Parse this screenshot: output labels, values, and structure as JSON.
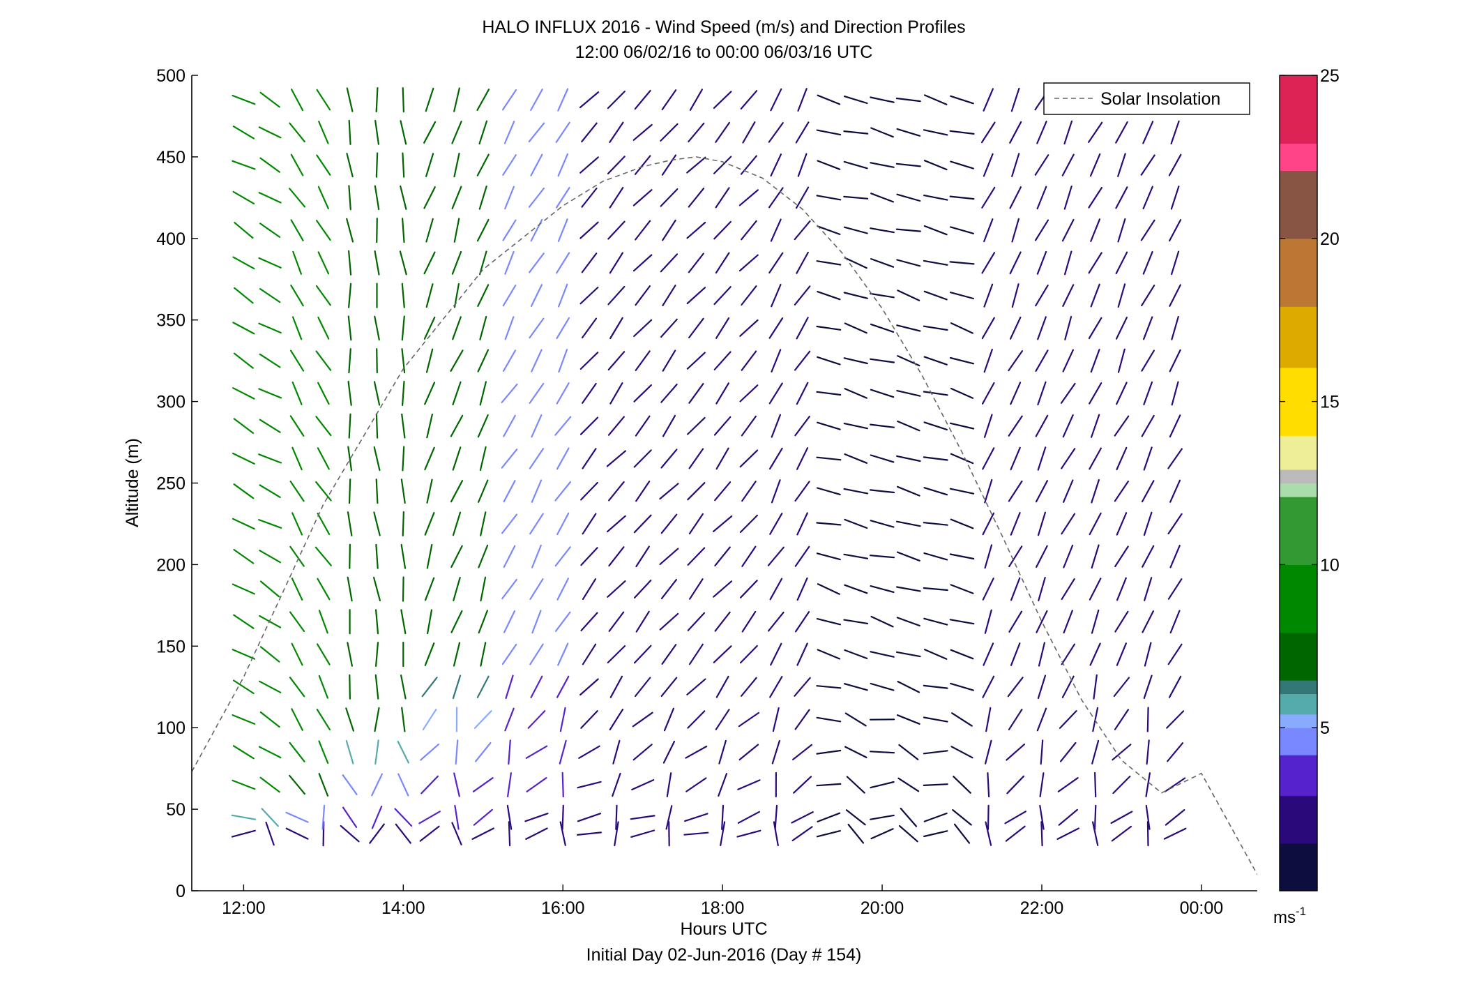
{
  "chart_data": {
    "type": "scatter",
    "title": "HALO INFLUX 2016 - Wind Speed (m/s) and Direction Profiles",
    "subtitle": "12:00 06/02/16 to 00:00 06/03/16  UTC",
    "xlabel": "Hours UTC",
    "xlabel2": "Initial Day 02-Jun-2016 (Day # 154)",
    "ylabel": "Altitude (m)",
    "xlim": [
      11.35,
      24.7
    ],
    "ylim": [
      0,
      500
    ],
    "x_ticks": [
      {
        "value": 12,
        "label": "12:00"
      },
      {
        "value": 14,
        "label": "14:00"
      },
      {
        "value": 16,
        "label": "16:00"
      },
      {
        "value": 18,
        "label": "18:00"
      },
      {
        "value": 20,
        "label": "20:00"
      },
      {
        "value": 22,
        "label": "22:00"
      },
      {
        "value": 24,
        "label": "00:00"
      }
    ],
    "y_ticks": [
      {
        "value": 0,
        "label": "0"
      },
      {
        "value": 50,
        "label": "50"
      },
      {
        "value": 100,
        "label": "100"
      },
      {
        "value": 150,
        "label": "150"
      },
      {
        "value": 200,
        "label": "200"
      },
      {
        "value": 250,
        "label": "250"
      },
      {
        "value": 300,
        "label": "300"
      },
      {
        "value": 350,
        "label": "350"
      },
      {
        "value": 400,
        "label": "400"
      },
      {
        "value": 450,
        "label": "450"
      },
      {
        "value": 500,
        "label": "500"
      }
    ],
    "legend": {
      "entry": "Solar Insolation",
      "position": "top-right",
      "line_style": "dashed",
      "color": "#666666"
    },
    "colorbar": {
      "range": [
        0,
        25
      ],
      "ticks": [
        {
          "value": 5,
          "label": "5"
        },
        {
          "value": 10,
          "label": "10"
        },
        {
          "value": 15,
          "label": "15"
        },
        {
          "value": 20,
          "label": "20"
        },
        {
          "value": 25,
          "label": "25"
        }
      ],
      "unit": "ms",
      "unit_exp": "-1",
      "stops": [
        {
          "v": 0,
          "color": "#0d0d40"
        },
        {
          "v": 1.5,
          "color": "#2a0a7a"
        },
        {
          "v": 3,
          "color": "#5522cc"
        },
        {
          "v": 4.2,
          "color": "#7a88ff"
        },
        {
          "v": 5,
          "color": "#88aaff"
        },
        {
          "v": 5.5,
          "color": "#55aaaa"
        },
        {
          "v": 6,
          "color": "#337777"
        },
        {
          "v": 6.5,
          "color": "#006600"
        },
        {
          "v": 8,
          "color": "#008800"
        },
        {
          "v": 10,
          "color": "#339933"
        },
        {
          "v": 12,
          "color": "#aaddaa"
        },
        {
          "v": 12.5,
          "color": "#bbbbbb"
        },
        {
          "v": 13,
          "color": "#eeee99"
        },
        {
          "v": 14,
          "color": "#ffdd00"
        },
        {
          "v": 16,
          "color": "#ddaa00"
        },
        {
          "v": 18,
          "color": "#bb7733"
        },
        {
          "v": 20,
          "color": "#885544"
        },
        {
          "v": 22,
          "color": "#ff4488"
        },
        {
          "v": 23,
          "color": "#dd2255"
        },
        {
          "v": 25,
          "color": "#aa0011"
        }
      ]
    },
    "solar_insolation": {
      "x": [
        11.35,
        12,
        13,
        14,
        15,
        16,
        16.5,
        17,
        17.35,
        17.67,
        18,
        18.5,
        19,
        19.5,
        20,
        20.5,
        21,
        21.5,
        22,
        22.5,
        23,
        23.5,
        24,
        24.7
      ],
      "y": [
        73,
        131,
        237,
        320,
        381,
        420,
        435,
        444,
        448,
        450,
        447,
        437,
        418,
        391,
        357,
        316,
        269,
        218,
        165,
        117,
        80,
        60,
        72,
        10
      ]
    },
    "time_columns_h": [
      12.0,
      12.33,
      12.67,
      13.0,
      13.33,
      13.67,
      14.0,
      14.33,
      14.67,
      15.0,
      15.33,
      15.67,
      16.0,
      16.33,
      16.67,
      17.0,
      17.33,
      17.67,
      18.0,
      18.33,
      18.67,
      19.0,
      19.33,
      19.67,
      20.0,
      20.33,
      20.67,
      21.0,
      21.33,
      21.67,
      22.0,
      22.33,
      22.67,
      23.0,
      23.33,
      23.67
    ],
    "altitude_levels_m": [
      35,
      45,
      65,
      85,
      105,
      125,
      145,
      165,
      185,
      205,
      225,
      245,
      265,
      285,
      305,
      325,
      345,
      365,
      385,
      405,
      425,
      445,
      465,
      485
    ],
    "wind_segments": [
      {
        "t_from": 12.0,
        "t_to": 12.33,
        "speed_ms": 9.5,
        "dir_deg": 300,
        "lowest_speed_ms": 3.0,
        "low_levels_m": 60
      },
      {
        "t_from": 12.33,
        "t_to": 13.0,
        "speed_ms": 9.0,
        "dir_deg": 330,
        "lowest_speed_ms": 3.0,
        "low_levels_m": 80
      },
      {
        "t_from": 13.0,
        "t_to": 14.0,
        "speed_ms": 8.0,
        "dir_deg": 355,
        "lowest_speed_ms": 3.0,
        "low_levels_m": 120
      },
      {
        "t_from": 14.0,
        "t_to": 15.0,
        "speed_ms": 7.0,
        "dir_deg": 20,
        "lowest_speed_ms": 3.0,
        "low_levels_m": 150
      },
      {
        "t_from": 15.0,
        "t_to": 16.0,
        "speed_ms": 4.5,
        "dir_deg": 30,
        "lowest_speed_ms": 2.8,
        "low_levels_m": 150
      },
      {
        "t_from": 16.0,
        "t_to": 18.5,
        "speed_ms": 3.0,
        "dir_deg": 40,
        "lowest_speed_ms": 2.5,
        "low_levels_m": 150
      },
      {
        "t_from": 18.5,
        "t_to": 19.0,
        "speed_ms": 2.0,
        "dir_deg": 30,
        "lowest_speed_ms": 1.8,
        "low_levels_m": 150
      },
      {
        "t_from": 19.0,
        "t_to": 21.0,
        "speed_ms": 1.5,
        "dir_deg": 285,
        "lowest_speed_ms": 1.2,
        "low_levels_m": 150
      },
      {
        "t_from": 21.33,
        "t_to": 23.67,
        "speed_ms": 2.8,
        "dir_deg": 25,
        "lowest_speed_ms": 2.5,
        "low_levels_m": 150
      }
    ]
  }
}
